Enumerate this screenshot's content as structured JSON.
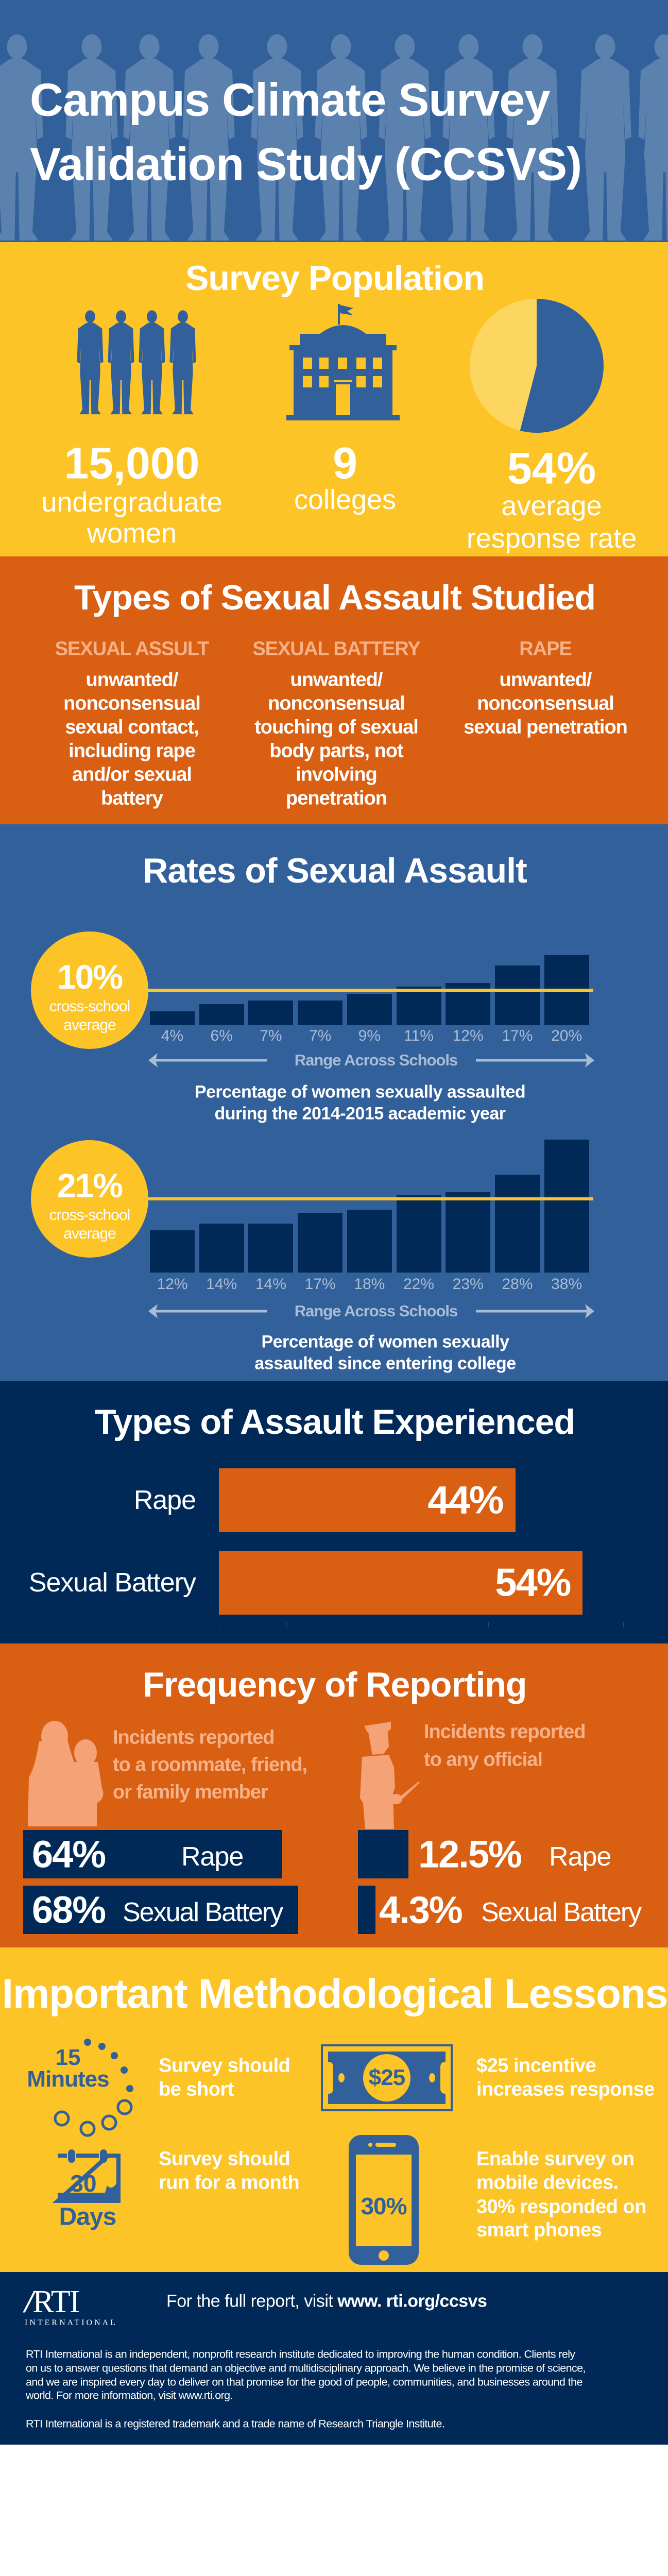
{
  "colors": {
    "header_blue": "#31609a",
    "silhouette": "#5b81ae",
    "yellow": "#fcc426",
    "light_yellow": "#fdd662",
    "orange": "#d95f13",
    "peach": "#f4a276",
    "navy": "#012957",
    "tick_text": "#a9bcd6"
  },
  "header": {
    "title_line1": "Campus Climate Survey",
    "title_line2": "Validation Study (CCSVS)",
    "icon": "women-silhouettes"
  },
  "population": {
    "title": "Survey Population",
    "stats": [
      {
        "value": "15,000",
        "label_lines": [
          "undergraduate",
          "women"
        ],
        "icon": "women-group-icon"
      },
      {
        "value": "9",
        "label_lines": [
          "colleges"
        ],
        "icon": "college-building-icon"
      },
      {
        "value": "54%",
        "label_lines": [
          "average",
          "response rate"
        ],
        "icon": "pie-icon"
      }
    ]
  },
  "types_studied": {
    "title": "Types of Sexual Assault Studied",
    "columns": [
      {
        "heading": "SEXUAL ASSULT",
        "lines": [
          "unwanted/",
          "nonconsensual",
          "sexual contact,",
          "including rape",
          "and/or sexual",
          "battery"
        ]
      },
      {
        "heading": "SEXUAL BATTERY",
        "lines": [
          "unwanted/",
          "nonconsensual",
          "touching of sexual",
          "body parts, not",
          "involving",
          "penetration"
        ]
      },
      {
        "heading": "RAPE",
        "lines": [
          "unwanted/",
          "nonconsensual",
          "sexual penetration"
        ]
      }
    ]
  },
  "rates": {
    "title": "Rates of Sexual Assault",
    "charts": [
      {
        "average": "10%",
        "average_label_lines": [
          "cross-school",
          "average"
        ],
        "range_label": "Range Across Schools",
        "caption_lines": [
          "Percentage of women sexually assaulted",
          "during the 2014-2015 academic year"
        ]
      },
      {
        "average": "21%",
        "average_label_lines": [
          "cross-school",
          "average"
        ],
        "range_label": "Range Across Schools",
        "caption_lines": [
          "Percentage of women sexually",
          "assaulted since entering college"
        ]
      }
    ]
  },
  "experienced": {
    "title": "Types of Assault Experienced",
    "rows": [
      {
        "label": "Rape",
        "value_label": "44%"
      },
      {
        "label": "Sexual Battery",
        "value_label": "54%"
      }
    ]
  },
  "reporting": {
    "title": "Frequency of Reporting",
    "friends": {
      "text_lines": [
        "Incidents reported",
        "to a roommate, friend,",
        "or family member"
      ],
      "rows": [
        {
          "value_label": "64%",
          "label": "Rape"
        },
        {
          "value_label": "68%",
          "label": "Sexual Battery"
        }
      ]
    },
    "official": {
      "text_lines": [
        "Incidents reported",
        "to any official"
      ],
      "rows": [
        {
          "value_label": "12.5%",
          "label": "Rape"
        },
        {
          "value_label": "4.3%",
          "label": "Sexual Battery"
        }
      ]
    }
  },
  "lessons": {
    "title": "Important Methodological Lessons",
    "items": [
      {
        "icon_text_lines": [
          "15",
          "Minutes"
        ],
        "text_lines": [
          "Survey should",
          "be short"
        ]
      },
      {
        "icon_text_lines": [
          "$25"
        ],
        "text_lines": [
          "$25 incentive",
          "increases response"
        ]
      },
      {
        "icon_text_lines": [
          "30",
          "Days"
        ],
        "text_lines": [
          "Survey should",
          "run for a month"
        ]
      },
      {
        "icon_text_lines": [
          "30%"
        ],
        "text_lines": [
          "Enable survey on",
          "mobile devices.",
          "30% responded on",
          "smart phones"
        ]
      }
    ]
  },
  "footer": {
    "logo": "RTI INTERNATIONAL",
    "report_prefix": "For the full report, visit ",
    "report_link": "www. rti.org/ccsvs",
    "about_lines": [
      "RTI International is an independent, nonprofit research institute dedicated to improving the human condition. Clients rely",
      "on us to answer questions that demand an objective and multidisciplinary approach. We believe in the promise of science,",
      "and we are inspired every day to deliver on that promise for the good of people, communities, and businesses around the",
      "world. For more information, visit www.rti.org."
    ],
    "trademark": "RTI International is a registered trademark and a trade name of Research Triangle Institute."
  },
  "chart_data": [
    {
      "type": "pie",
      "title": "",
      "values": [
        54,
        46
      ],
      "categories": [
        "responded",
        "not responded"
      ]
    },
    {
      "type": "bar",
      "title": "",
      "xlabel": "Range Across Schools",
      "values": [
        4,
        6,
        7,
        7,
        9,
        11,
        12,
        17,
        20
      ],
      "labels": [
        "4%",
        "6%",
        "7%",
        "7%",
        "9%",
        "11%",
        "12%",
        "17%",
        "20%"
      ],
      "average": 10,
      "unit": "%"
    },
    {
      "type": "bar",
      "title": "",
      "xlabel": "Range Across Schools",
      "values": [
        12,
        14,
        14,
        17,
        18,
        22,
        23,
        28,
        38
      ],
      "labels": [
        "12%",
        "14%",
        "14%",
        "17%",
        "18%",
        "22%",
        "23%",
        "28%",
        "38%"
      ],
      "average": 21,
      "unit": "%"
    },
    {
      "type": "bar",
      "orientation": "horizontal",
      "title": "",
      "categories": [
        "Rape",
        "Sexual Battery"
      ],
      "values": [
        44,
        54
      ],
      "xlim": [
        0,
        70
      ]
    },
    {
      "type": "bar",
      "orientation": "horizontal",
      "title": "",
      "categories": [
        "Rape",
        "Sexual Battery"
      ],
      "series": [
        {
          "name": "to a roommate, friend, or family member",
          "values": [
            64,
            68
          ]
        },
        {
          "name": "to any official",
          "values": [
            12.5,
            4.3
          ]
        }
      ]
    }
  ]
}
